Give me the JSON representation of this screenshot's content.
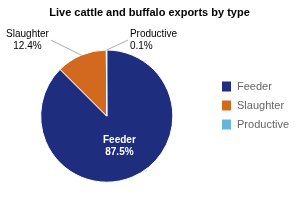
{
  "chart_data": {
    "type": "pie",
    "title": "Live cattle and buffalo exports by type",
    "categories": [
      "Feeder",
      "Slaughter",
      "Productive"
    ],
    "values": [
      87.5,
      12.4,
      0.1
    ],
    "colors": [
      "#1e2d7d",
      "#d2691e",
      "#6ab4d8"
    ],
    "data_labels": true,
    "value_labels": [
      "87.5%",
      "12.4%",
      "0.1%"
    ],
    "legend": "right"
  }
}
